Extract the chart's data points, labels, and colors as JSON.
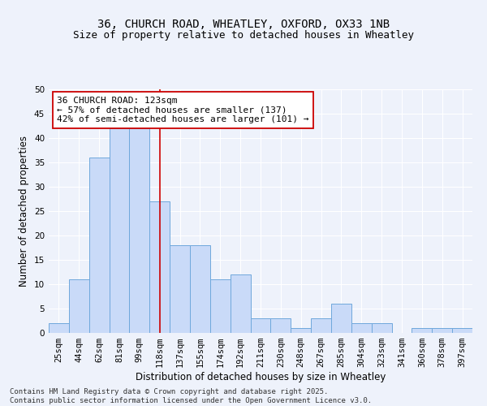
{
  "title1": "36, CHURCH ROAD, WHEATLEY, OXFORD, OX33 1NB",
  "title2": "Size of property relative to detached houses in Wheatley",
  "xlabel": "Distribution of detached houses by size in Wheatley",
  "ylabel": "Number of detached properties",
  "categories": [
    "25sqm",
    "44sqm",
    "62sqm",
    "81sqm",
    "99sqm",
    "118sqm",
    "137sqm",
    "155sqm",
    "174sqm",
    "192sqm",
    "211sqm",
    "230sqm",
    "248sqm",
    "267sqm",
    "285sqm",
    "304sqm",
    "323sqm",
    "341sqm",
    "360sqm",
    "378sqm",
    "397sqm"
  ],
  "values": [
    2,
    11,
    36,
    42,
    42,
    27,
    18,
    18,
    11,
    12,
    3,
    3,
    1,
    3,
    6,
    2,
    2,
    0,
    1,
    1,
    1
  ],
  "bar_color": "#c9daf8",
  "bar_edge_color": "#6fa8dc",
  "vline_x": 5.0,
  "vline_color": "#cc0000",
  "annotation_text": "36 CHURCH ROAD: 123sqm\n← 57% of detached houses are smaller (137)\n42% of semi-detached houses are larger (101) →",
  "annotation_box_color": "#ffffff",
  "annotation_box_edge": "#cc0000",
  "ylim": [
    0,
    50
  ],
  "yticks": [
    0,
    5,
    10,
    15,
    20,
    25,
    30,
    35,
    40,
    45,
    50
  ],
  "footnote": "Contains HM Land Registry data © Crown copyright and database right 2025.\nContains public sector information licensed under the Open Government Licence v3.0.",
  "bg_color": "#eef2fb",
  "grid_color": "#ffffff",
  "title_fontsize": 10,
  "subtitle_fontsize": 9,
  "axis_label_fontsize": 8.5,
  "tick_fontsize": 7.5,
  "annotation_fontsize": 8,
  "footnote_fontsize": 6.5
}
